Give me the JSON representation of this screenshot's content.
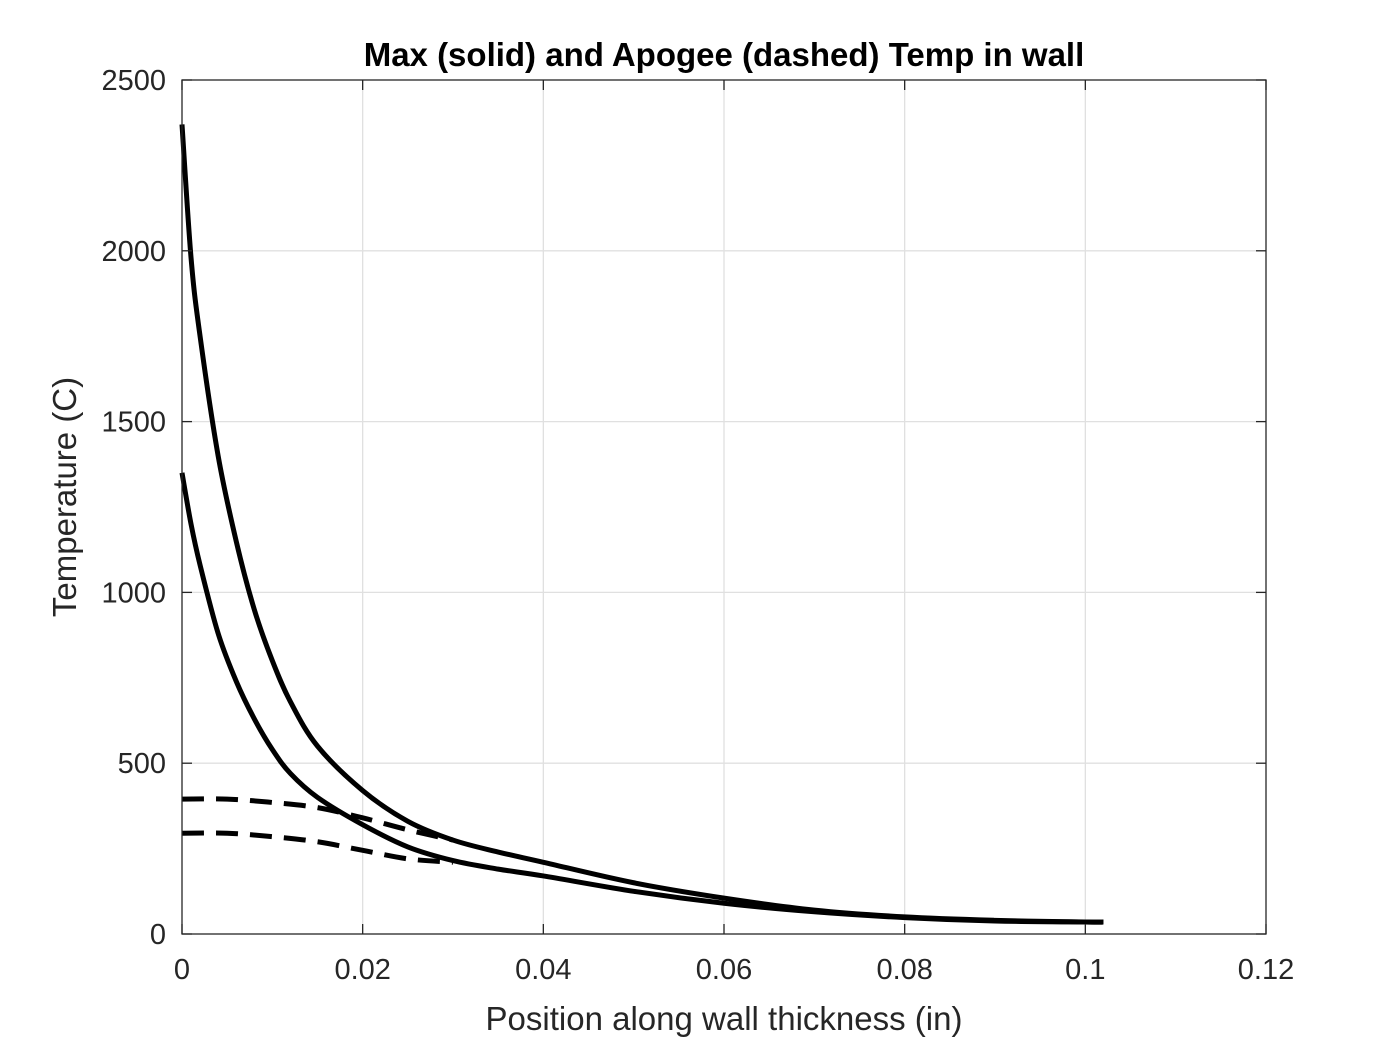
{
  "chart_data": {
    "type": "line",
    "title": "Max (solid) and Apogee (dashed) Temp in wall",
    "xlabel": "Position along wall thickness (in)",
    "ylabel": "Temperature (C)",
    "xlim": [
      0,
      0.12
    ],
    "ylim": [
      0,
      2500
    ],
    "xticks": [
      0,
      0.02,
      0.04,
      0.06,
      0.08,
      0.1,
      0.12
    ],
    "xtick_labels": [
      "0",
      "0.02",
      "0.04",
      "0.06",
      "0.08",
      "0.1",
      "0.12"
    ],
    "yticks": [
      0,
      500,
      1000,
      1500,
      2000,
      2500
    ],
    "ytick_labels": [
      "0",
      "500",
      "1000",
      "1500",
      "2000",
      "2500"
    ],
    "grid": true,
    "legend": "none",
    "line_color": "#000000",
    "grid_color": "#e0e0e0",
    "series": [
      {
        "style": "solid",
        "x": [
          0,
          0.001,
          0.002,
          0.004,
          0.006,
          0.008,
          0.01,
          0.012,
          0.015,
          0.02,
          0.025,
          0.03,
          0.035,
          0.04,
          0.05,
          0.06,
          0.07,
          0.08,
          0.09,
          0.1,
          0.102
        ],
        "y": [
          2370,
          1980,
          1750,
          1400,
          1150,
          950,
          800,
          680,
          550,
          420,
          330,
          275,
          240,
          210,
          150,
          105,
          70,
          50,
          40,
          35,
          35
        ]
      },
      {
        "style": "solid",
        "x": [
          0,
          0.001,
          0.002,
          0.004,
          0.006,
          0.008,
          0.01,
          0.012,
          0.015,
          0.02,
          0.025,
          0.03,
          0.035,
          0.04,
          0.05,
          0.06,
          0.07,
          0.08,
          0.09,
          0.1,
          0.102
        ],
        "y": [
          1350,
          1200,
          1080,
          880,
          740,
          630,
          540,
          470,
          400,
          320,
          255,
          215,
          190,
          170,
          125,
          90,
          65,
          48,
          38,
          35,
          35
        ]
      },
      {
        "style": "dashed",
        "x": [
          0,
          0.005,
          0.01,
          0.015,
          0.02,
          0.025,
          0.03
        ],
        "y": [
          395,
          395,
          385,
          370,
          340,
          305,
          275
        ]
      },
      {
        "style": "dashed",
        "x": [
          0,
          0.005,
          0.01,
          0.015,
          0.02,
          0.025,
          0.03
        ],
        "y": [
          295,
          295,
          285,
          270,
          245,
          220,
          210
        ]
      }
    ]
  }
}
